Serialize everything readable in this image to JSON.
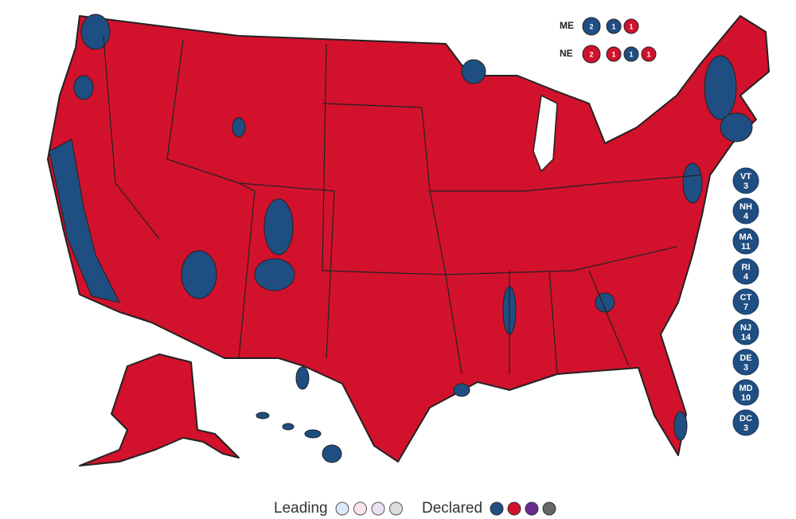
{
  "district_splits": [
    {
      "state": "ME",
      "votes": [
        {
          "value": 2,
          "color": "#1f4e82"
        },
        {
          "value": 1,
          "color": "#1f4e82"
        },
        {
          "value": 1,
          "color": "#d2112c"
        }
      ]
    },
    {
      "state": "NE",
      "votes": [
        {
          "value": 2,
          "color": "#d2112c"
        },
        {
          "value": 1,
          "color": "#d2112c"
        },
        {
          "value": 1,
          "color": "#1f4e82"
        },
        {
          "value": 1,
          "color": "#d2112c"
        }
      ]
    }
  ],
  "small_states": [
    {
      "state": "VT",
      "votes": 3,
      "color": "#1f4e82"
    },
    {
      "state": "NH",
      "votes": 4,
      "color": "#1f4e82"
    },
    {
      "state": "MA",
      "votes": 11,
      "color": "#1f4e82"
    },
    {
      "state": "RI",
      "votes": 4,
      "color": "#1f4e82"
    },
    {
      "state": "CT",
      "votes": 7,
      "color": "#1f4e82"
    },
    {
      "state": "NJ",
      "votes": 14,
      "color": "#1f4e82"
    },
    {
      "state": "DE",
      "votes": 3,
      "color": "#1f4e82"
    },
    {
      "state": "MD",
      "votes": 10,
      "color": "#1f4e82"
    },
    {
      "state": "DC",
      "votes": 3,
      "color": "#1f4e82"
    }
  ],
  "legend": {
    "leading": "Leading",
    "leading_colors": [
      "#dbe8f7",
      "#f9e4e8",
      "#ebe2f2",
      "#dcdcdc"
    ],
    "declared": "Declared",
    "declared_colors": [
      "#1f4e82",
      "#d2112c",
      "#6a2c8c",
      "#666666"
    ]
  }
}
